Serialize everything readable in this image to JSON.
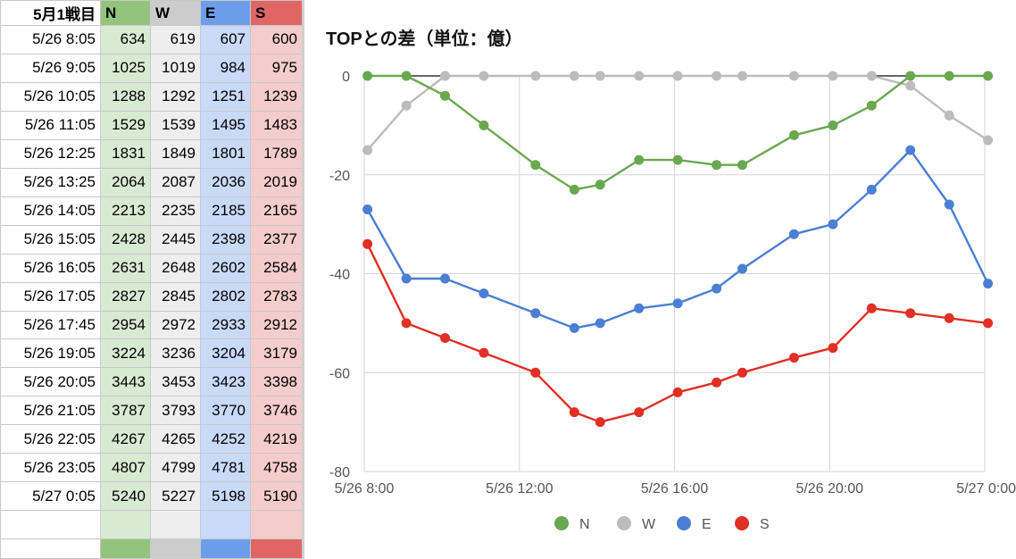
{
  "table": {
    "header": [
      "5月1戦目",
      "N",
      "W",
      "E",
      "S"
    ],
    "rows": [
      [
        "5/26 8:05",
        "634",
        "619",
        "607",
        "600"
      ],
      [
        "5/26 9:05",
        "1025",
        "1019",
        "984",
        "975"
      ],
      [
        "5/26 10:05",
        "1288",
        "1292",
        "1251",
        "1239"
      ],
      [
        "5/26 11:05",
        "1529",
        "1539",
        "1495",
        "1483"
      ],
      [
        "5/26 12:25",
        "1831",
        "1849",
        "1801",
        "1789"
      ],
      [
        "5/26 13:25",
        "2064",
        "2087",
        "2036",
        "2019"
      ],
      [
        "5/26 14:05",
        "2213",
        "2235",
        "2185",
        "2165"
      ],
      [
        "5/26 15:05",
        "2428",
        "2445",
        "2398",
        "2377"
      ],
      [
        "5/26 16:05",
        "2631",
        "2648",
        "2602",
        "2584"
      ],
      [
        "5/26 17:05",
        "2827",
        "2845",
        "2802",
        "2783"
      ],
      [
        "5/26 17:45",
        "2954",
        "2972",
        "2933",
        "2912"
      ],
      [
        "5/26 19:05",
        "3224",
        "3236",
        "3204",
        "3179"
      ],
      [
        "5/26 20:05",
        "3443",
        "3453",
        "3423",
        "3398"
      ],
      [
        "5/26 21:05",
        "3787",
        "3793",
        "3770",
        "3746"
      ],
      [
        "5/26 22:05",
        "4267",
        "4265",
        "4252",
        "4219"
      ],
      [
        "5/26 23:05",
        "4807",
        "4799",
        "4781",
        "4758"
      ],
      [
        "5/27 0:05",
        "5240",
        "5227",
        "5198",
        "5190"
      ]
    ]
  },
  "colors": {
    "N": "#6aa84f",
    "W": "#bcbcbc",
    "E": "#4a7fd4",
    "S": "#e02f24",
    "N_light": "#d9ead3",
    "W_light": "#eeeeee",
    "E_light": "#c9daf8",
    "S_light": "#f4cccc",
    "N_mid": "#93c47d",
    "W_mid": "#cccccc",
    "E_mid": "#6d9eeb",
    "S_mid": "#e06666"
  },
  "chart_data": {
    "type": "line",
    "title": "TOPとの差（単位：億）",
    "xlabel": "",
    "ylabel": "",
    "x": [
      "5/26 8:05",
      "5/26 9:05",
      "5/26 10:05",
      "5/26 11:05",
      "5/26 12:25",
      "5/26 13:25",
      "5/26 14:05",
      "5/26 15:05",
      "5/26 16:05",
      "5/26 17:05",
      "5/26 17:45",
      "5/26 19:05",
      "5/26 20:05",
      "5/26 21:05",
      "5/26 22:05",
      "5/26 23:05",
      "5/27 0:05"
    ],
    "x_tick_labels": [
      "5/26 8:00",
      "5/26 12:00",
      "5/26 16:00",
      "5/26 20:00",
      "5/27 0:00"
    ],
    "ylim": [
      -80,
      0
    ],
    "y_ticks": [
      0,
      -20,
      -40,
      -60,
      -80
    ],
    "grid": true,
    "legend_position": "bottom",
    "series": [
      {
        "name": "N",
        "values": [
          0,
          0,
          -4,
          -10,
          -18,
          -23,
          -22,
          -17,
          -17,
          -18,
          -18,
          -12,
          -10,
          -6,
          0,
          0,
          0
        ]
      },
      {
        "name": "W",
        "values": [
          -15,
          -6,
          0,
          0,
          0,
          0,
          0,
          0,
          0,
          0,
          0,
          0,
          0,
          0,
          -2,
          -8,
          -13
        ]
      },
      {
        "name": "E",
        "values": [
          -27,
          -41,
          -41,
          -44,
          -48,
          -51,
          -50,
          -47,
          -46,
          -43,
          -39,
          -32,
          -30,
          -23,
          -15,
          -26,
          -42
        ]
      },
      {
        "name": "S",
        "values": [
          -34,
          -50,
          -53,
          -56,
          -60,
          -68,
          -70,
          -68,
          -64,
          -62,
          -60,
          -57,
          -55,
          -47,
          -48,
          -49,
          -50
        ]
      }
    ]
  }
}
